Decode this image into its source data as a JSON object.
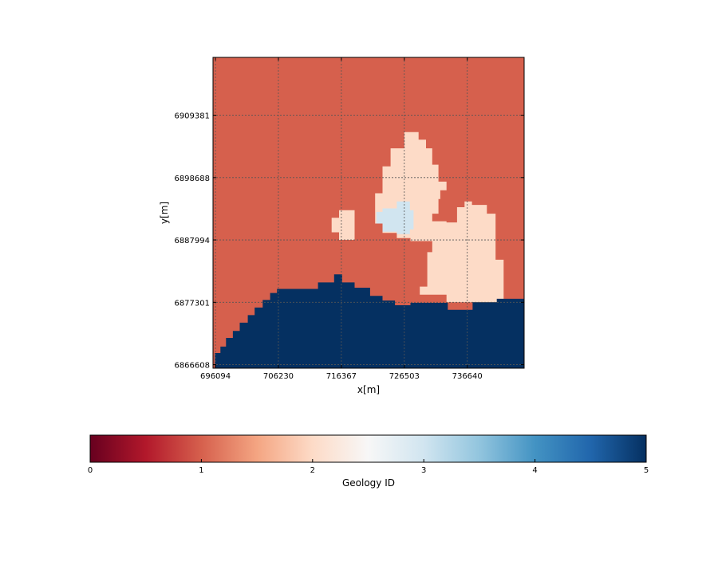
{
  "chart_data": [
    {
      "type": "heatmap",
      "title": "",
      "xlabel": "x[m]",
      "ylabel": "y[m]",
      "x_tick_labels": [
        "696094",
        "706230",
        "716367",
        "726503",
        "736640"
      ],
      "y_tick_labels": [
        "6909381",
        "6898688",
        "6887994",
        "6877301",
        "6866608"
      ],
      "x_ticks": [
        696094,
        706230,
        716367,
        726503,
        736640
      ],
      "y_ticks": [
        6909381,
        6898688,
        6887994,
        6877301,
        6866608
      ],
      "xlim": [
        695700,
        745800
      ],
      "ylim": [
        6866000,
        6919300
      ],
      "grid": true,
      "colormap": "RdBu",
      "value_range": [
        0,
        5
      ],
      "geology_regions": [
        {
          "geology_id": 1,
          "color": "#d6604d",
          "fill": "background"
        },
        {
          "geology_id": 1.98,
          "color": "#fddbc7",
          "polygon": [
            [
              726500,
              6906500
            ],
            [
              728800,
              6906500
            ],
            [
              728800,
              6905200
            ],
            [
              730000,
              6905200
            ],
            [
              730000,
              6903700
            ],
            [
              731000,
              6903700
            ],
            [
              731000,
              6900900
            ],
            [
              732000,
              6900900
            ],
            [
              732000,
              6898000
            ],
            [
              733300,
              6898000
            ],
            [
              733300,
              6896500
            ],
            [
              732300,
              6896500
            ],
            [
              732300,
              6895000
            ],
            [
              732000,
              6895000
            ],
            [
              732000,
              6892500
            ],
            [
              731000,
              6892500
            ],
            [
              731000,
              6891200
            ],
            [
              733300,
              6891200
            ],
            [
              733300,
              6891000
            ],
            [
              735000,
              6891000
            ],
            [
              735000,
              6893600
            ],
            [
              736200,
              6893600
            ],
            [
              736200,
              6894600
            ],
            [
              737400,
              6894600
            ],
            [
              737400,
              6894000
            ],
            [
              739800,
              6894000
            ],
            [
              739800,
              6892500
            ],
            [
              741200,
              6892500
            ],
            [
              741200,
              6884600
            ],
            [
              742500,
              6884600
            ],
            [
              742500,
              6877300
            ],
            [
              733300,
              6877300
            ],
            [
              733300,
              6878600
            ],
            [
              729000,
              6878600
            ],
            [
              729000,
              6880000
            ],
            [
              730200,
              6880000
            ],
            [
              730200,
              6885900
            ],
            [
              731000,
              6885900
            ],
            [
              731000,
              6887800
            ],
            [
              727500,
              6887800
            ],
            [
              727500,
              6888300
            ],
            [
              725300,
              6888300
            ],
            [
              725300,
              6889200
            ],
            [
              723000,
              6889200
            ],
            [
              723000,
              6890800
            ],
            [
              721800,
              6890800
            ],
            [
              721800,
              6896000
            ],
            [
              723000,
              6896000
            ],
            [
              723000,
              6900600
            ],
            [
              724300,
              6900600
            ],
            [
              724300,
              6903700
            ],
            [
              726500,
              6903700
            ]
          ]
        },
        {
          "geology_id": 1.98,
          "color": "#fddbc7",
          "polygon": [
            [
              716000,
              6893100
            ],
            [
              718500,
              6893100
            ],
            [
              718500,
              6888000
            ],
            [
              716000,
              6888000
            ],
            [
              716000,
              6889300
            ],
            [
              714800,
              6889300
            ],
            [
              714800,
              6891800
            ],
            [
              716000,
              6891800
            ]
          ]
        },
        {
          "geology_id": 2.9,
          "color": "#d1e5f0",
          "polygon": [
            [
              725300,
              6894600
            ],
            [
              727400,
              6894600
            ],
            [
              727400,
              6893100
            ],
            [
              728000,
              6893100
            ],
            [
              728000,
              6889800
            ],
            [
              727400,
              6889800
            ],
            [
              727400,
              6889000
            ],
            [
              725300,
              6889000
            ],
            [
              725300,
              6889400
            ],
            [
              723000,
              6889400
            ],
            [
              723000,
              6890800
            ],
            [
              722000,
              6890800
            ],
            [
              722000,
              6892800
            ],
            [
              723000,
              6892800
            ],
            [
              723000,
              6893400
            ],
            [
              725300,
              6893400
            ]
          ]
        },
        {
          "geology_id": 5,
          "color": "#053061",
          "polygon": [
            [
              696000,
              6866000
            ],
            [
              745800,
              6866000
            ],
            [
              745800,
              6877900
            ],
            [
              741400,
              6877900
            ],
            [
              741400,
              6877300
            ],
            [
              737500,
              6877300
            ],
            [
              737500,
              6876000
            ],
            [
              733500,
              6876000
            ],
            [
              733500,
              6877200
            ],
            [
              727500,
              6877200
            ],
            [
              727500,
              6876800
            ],
            [
              725000,
              6876800
            ],
            [
              725000,
              6877600
            ],
            [
              723000,
              6877600
            ],
            [
              723000,
              6878400
            ],
            [
              721000,
              6878400
            ],
            [
              721000,
              6879800
            ],
            [
              718500,
              6879800
            ],
            [
              718500,
              6880700
            ],
            [
              716500,
              6880700
            ],
            [
              716500,
              6882100
            ],
            [
              715200,
              6882100
            ],
            [
              715200,
              6880700
            ],
            [
              712600,
              6880700
            ],
            [
              712600,
              6879600
            ],
            [
              706000,
              6879600
            ],
            [
              706000,
              6878900
            ],
            [
              704900,
              6878900
            ],
            [
              704900,
              6877700
            ],
            [
              703700,
              6877700
            ],
            [
              703700,
              6876400
            ],
            [
              702400,
              6876400
            ],
            [
              702400,
              6875100
            ],
            [
              701300,
              6875100
            ],
            [
              701300,
              6873800
            ],
            [
              700000,
              6873800
            ],
            [
              700000,
              6872400
            ],
            [
              698900,
              6872400
            ],
            [
              698900,
              6871200
            ],
            [
              697800,
              6871200
            ],
            [
              697800,
              6869700
            ],
            [
              696900,
              6869700
            ],
            [
              696900,
              6868600
            ],
            [
              696000,
              6868600
            ]
          ]
        }
      ],
      "legend_placement": "none"
    },
    {
      "type": "colorbar",
      "orientation": "horizontal",
      "label": "Geology ID",
      "tick_labels": [
        "0",
        "1",
        "2",
        "3",
        "4",
        "5"
      ],
      "ticks": [
        0,
        1,
        2,
        3,
        4,
        5
      ],
      "range": [
        0,
        5
      ],
      "colormap_stops": [
        "#67001f",
        "#b2182b",
        "#d6604d",
        "#f4a582",
        "#fddbc7",
        "#f7f7f7",
        "#d1e5f0",
        "#92c5de",
        "#4393c3",
        "#2166ac",
        "#053061"
      ]
    }
  ]
}
